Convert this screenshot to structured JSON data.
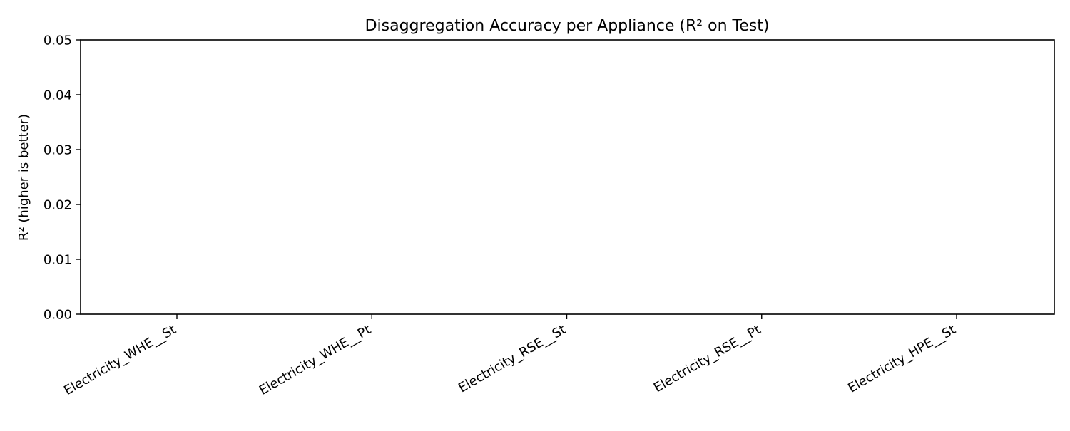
{
  "chart_data": {
    "type": "bar",
    "title": "Disaggregation Accuracy per Appliance (R² on Test)",
    "xlabel": "",
    "ylabel": "R² (higher is better)",
    "categories": [
      "Electricity_WHE__St",
      "Electricity_WHE__Pt",
      "Electricity_RSE__St",
      "Electricity_RSE__Pt",
      "Electricity_HPE__St"
    ],
    "values": [
      0,
      0,
      0,
      0,
      0
    ],
    "ylim": [
      0,
      0.05
    ],
    "yticks": [
      "0.00",
      "0.01",
      "0.02",
      "0.03",
      "0.04",
      "0.05"
    ],
    "grid": false,
    "legend": "none",
    "bar_color": "#1f77b4"
  }
}
